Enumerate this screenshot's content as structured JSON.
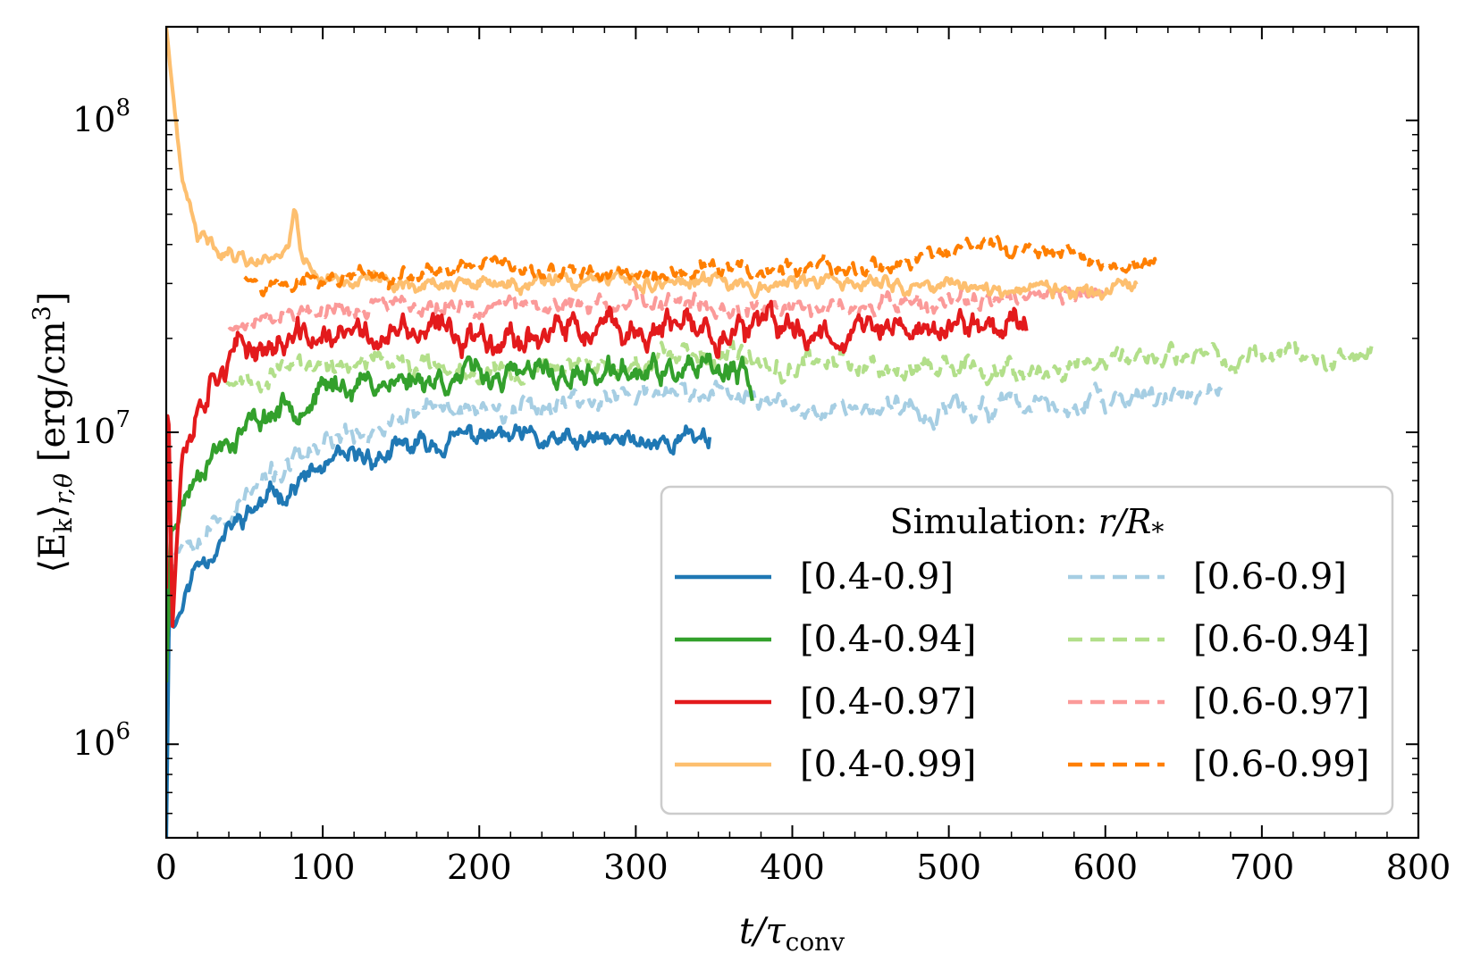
{
  "chart_data": {
    "type": "line",
    "title": "",
    "xlabel": "t/τ_conv",
    "ylabel": "⟨E_k⟩_{r,θ} [erg/cm³]",
    "xlabel_parts": {
      "main": "t/τ",
      "sub": "conv"
    },
    "ylabel_parts": {
      "pre": "⟨E",
      "sub1": "k",
      "mid": "⟩",
      "sub2": "r,θ",
      "unit_pre": " [erg/cm",
      "unit_sup": "3",
      "unit_post": "]"
    },
    "xlim": [
      0,
      800
    ],
    "ylim_log10": [
      5.7,
      8.3
    ],
    "yscale": "log",
    "xticks": [
      0,
      100,
      200,
      300,
      400,
      500,
      600,
      700,
      800
    ],
    "xtick_labels": [
      "0",
      "100",
      "200",
      "300",
      "400",
      "500",
      "600",
      "700",
      "800"
    ],
    "yticks_major": [
      {
        "value": 1000000,
        "base": "10",
        "exp": "6"
      },
      {
        "value": 10000000,
        "base": "10",
        "exp": "7"
      },
      {
        "value": 100000000,
        "base": "10",
        "exp": "8"
      }
    ],
    "legend": {
      "title_text": "Simulation: ",
      "title_math": "r/R",
      "title_sub": "*",
      "location": "lower-right",
      "ncol": 2
    },
    "series": [
      {
        "name": "[0.4-0.9]",
        "color": "#1f78b4",
        "dash": "solid",
        "x_end": 348,
        "drop_end": false,
        "keypoints": [
          [
            0,
            5.7
          ],
          [
            2,
            6.5
          ],
          [
            5,
            6.38
          ],
          [
            10,
            6.45
          ],
          [
            20,
            6.58
          ],
          [
            35,
            6.66
          ],
          [
            50,
            6.73
          ],
          [
            70,
            6.8
          ],
          [
            100,
            6.88
          ],
          [
            150,
            6.94
          ],
          [
            200,
            6.99
          ],
          [
            250,
            6.96
          ],
          [
            300,
            6.97
          ],
          [
            348,
            6.99
          ]
        ],
        "amp": 0.05,
        "seed": 11
      },
      {
        "name": "[0.4-0.94]",
        "color": "#33a02c",
        "dash": "solid",
        "x_end": 375,
        "drop_end": true,
        "keypoints": [
          [
            0,
            6.2
          ],
          [
            3,
            6.68
          ],
          [
            10,
            6.78
          ],
          [
            25,
            6.93
          ],
          [
            50,
            7.02
          ],
          [
            80,
            7.1
          ],
          [
            120,
            7.16
          ],
          [
            180,
            7.18
          ],
          [
            250,
            7.18
          ],
          [
            300,
            7.19
          ],
          [
            375,
            7.18
          ]
        ],
        "amp": 0.06,
        "seed": 23
      },
      {
        "name": "[0.4-0.97]",
        "color": "#e31a1c",
        "dash": "solid",
        "x_end": 550,
        "drop_end": false,
        "keypoints": [
          [
            0,
            6.5
          ],
          [
            1,
            7.2
          ],
          [
            4,
            6.4
          ],
          [
            10,
            6.95
          ],
          [
            20,
            7.1
          ],
          [
            35,
            7.24
          ],
          [
            60,
            7.28
          ],
          [
            100,
            7.3
          ],
          [
            200,
            7.32
          ],
          [
            300,
            7.32
          ],
          [
            400,
            7.33
          ],
          [
            500,
            7.33
          ],
          [
            550,
            7.36
          ]
        ],
        "amp": 0.07,
        "seed": 37
      },
      {
        "name": "[0.4-0.99]",
        "color": "#fdbf6f",
        "dash": "solid",
        "x_end": 620,
        "drop_end": false,
        "keypoints": [
          [
            0,
            8.3
          ],
          [
            5,
            8.05
          ],
          [
            10,
            7.8
          ],
          [
            20,
            7.62
          ],
          [
            40,
            7.58
          ],
          [
            60,
            7.55
          ],
          [
            78,
            7.6
          ],
          [
            82,
            7.72
          ],
          [
            88,
            7.55
          ],
          [
            100,
            7.5
          ],
          [
            150,
            7.48
          ],
          [
            200,
            7.47
          ],
          [
            300,
            7.48
          ],
          [
            400,
            7.48
          ],
          [
            500,
            7.47
          ],
          [
            560,
            7.46
          ],
          [
            620,
            7.44
          ]
        ],
        "amp": 0.035,
        "seed": 41
      },
      {
        "name": "[0.6-0.9]",
        "color": "#a6cee3",
        "dash": "dash",
        "x_end": 675,
        "drop_end": false,
        "keypoints": [
          [
            0,
            6.45
          ],
          [
            5,
            6.62
          ],
          [
            15,
            6.68
          ],
          [
            40,
            6.74
          ],
          [
            60,
            6.83
          ],
          [
            100,
            6.95
          ],
          [
            150,
            7.05
          ],
          [
            200,
            7.08
          ],
          [
            250,
            7.1
          ],
          [
            300,
            7.12
          ],
          [
            350,
            7.12
          ],
          [
            400,
            7.1
          ],
          [
            450,
            7.08
          ],
          [
            500,
            7.07
          ],
          [
            600,
            7.09
          ],
          [
            675,
            7.14
          ]
        ],
        "amp": 0.05,
        "seed": 53
      },
      {
        "name": "[0.6-0.94]",
        "color": "#b2df8a",
        "dash": "dash",
        "x_end": 770,
        "drop_end": false,
        "keypoints": [
          [
            38,
            7.16
          ],
          [
            60,
            7.19
          ],
          [
            100,
            7.22
          ],
          [
            200,
            7.21
          ],
          [
            300,
            7.22
          ],
          [
            400,
            7.23
          ],
          [
            500,
            7.22
          ],
          [
            550,
            7.21
          ],
          [
            600,
            7.23
          ],
          [
            700,
            7.24
          ],
          [
            770,
            7.26
          ]
        ],
        "amp": 0.05,
        "seed": 67
      },
      {
        "name": "[0.6-0.97]",
        "color": "#fb9a99",
        "dash": "dash",
        "x_end": 600,
        "drop_end": false,
        "keypoints": [
          [
            40,
            7.33
          ],
          [
            80,
            7.4
          ],
          [
            150,
            7.4
          ],
          [
            250,
            7.41
          ],
          [
            350,
            7.4
          ],
          [
            450,
            7.4
          ],
          [
            550,
            7.42
          ],
          [
            600,
            7.44
          ]
        ],
        "amp": 0.045,
        "seed": 79
      },
      {
        "name": "[0.6-0.99]",
        "color": "#ff7f00",
        "dash": "dash",
        "x_end": 633,
        "drop_end": false,
        "keypoints": [
          [
            50,
            7.5
          ],
          [
            80,
            7.47
          ],
          [
            100,
            7.48
          ],
          [
            200,
            7.51
          ],
          [
            300,
            7.51
          ],
          [
            400,
            7.52
          ],
          [
            450,
            7.52
          ],
          [
            500,
            7.58
          ],
          [
            520,
            7.6
          ],
          [
            600,
            7.54
          ],
          [
            633,
            7.53
          ]
        ],
        "amp": 0.04,
        "seed": 97
      }
    ]
  }
}
